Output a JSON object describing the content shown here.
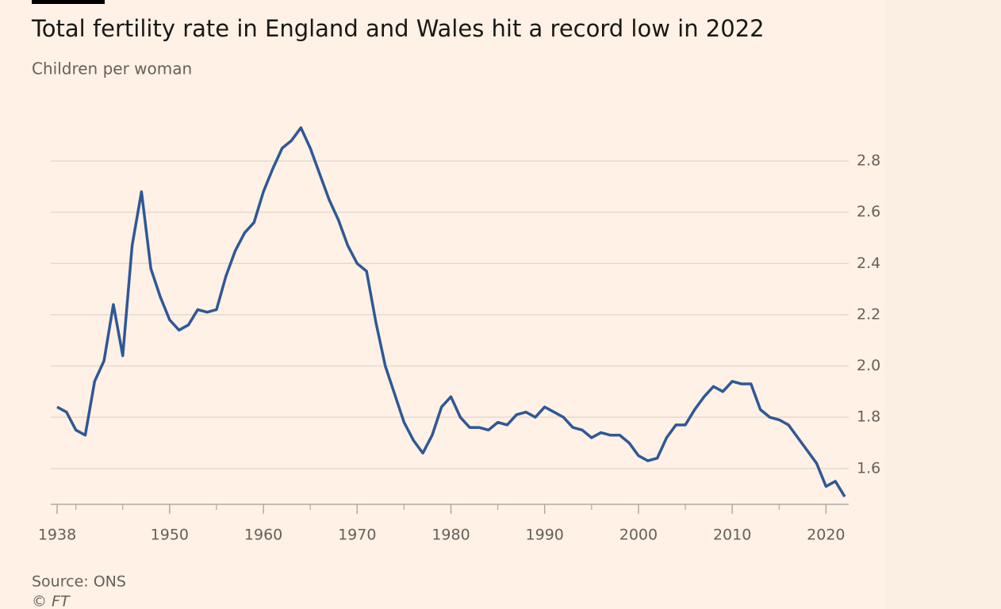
{
  "chart_data": {
    "type": "line",
    "title": "Total fertility rate in England and Wales hit a record low in 2022",
    "subtitle": "Children per woman",
    "source": "Source: ONS",
    "credit": "© FT",
    "color": "#2f5896",
    "x": [
      1938,
      1939,
      1940,
      1941,
      1942,
      1943,
      1944,
      1945,
      1946,
      1947,
      1948,
      1949,
      1950,
      1951,
      1952,
      1953,
      1954,
      1955,
      1956,
      1957,
      1958,
      1959,
      1960,
      1961,
      1962,
      1963,
      1964,
      1965,
      1966,
      1967,
      1968,
      1969,
      1970,
      1971,
      1972,
      1973,
      1974,
      1975,
      1976,
      1977,
      1978,
      1979,
      1980,
      1981,
      1982,
      1983,
      1984,
      1985,
      1986,
      1987,
      1988,
      1989,
      1990,
      1991,
      1992,
      1993,
      1994,
      1995,
      1996,
      1997,
      1998,
      1999,
      2000,
      2001,
      2002,
      2003,
      2004,
      2005,
      2006,
      2007,
      2008,
      2009,
      2010,
      2011,
      2012,
      2013,
      2014,
      2015,
      2016,
      2017,
      2018,
      2019,
      2020,
      2021,
      2022
    ],
    "values": [
      1.84,
      1.82,
      1.75,
      1.73,
      1.94,
      2.02,
      2.24,
      2.04,
      2.47,
      2.68,
      2.38,
      2.27,
      2.18,
      2.14,
      2.16,
      2.22,
      2.21,
      2.22,
      2.35,
      2.45,
      2.52,
      2.56,
      2.68,
      2.77,
      2.85,
      2.88,
      2.93,
      2.85,
      2.75,
      2.65,
      2.57,
      2.47,
      2.4,
      2.37,
      2.17,
      2.0,
      1.89,
      1.78,
      1.71,
      1.66,
      1.73,
      1.84,
      1.88,
      1.8,
      1.76,
      1.76,
      1.75,
      1.78,
      1.77,
      1.81,
      1.82,
      1.8,
      1.84,
      1.82,
      1.8,
      1.76,
      1.75,
      1.72,
      1.74,
      1.73,
      1.73,
      1.7,
      1.65,
      1.63,
      1.64,
      1.72,
      1.77,
      1.77,
      1.83,
      1.88,
      1.92,
      1.9,
      1.94,
      1.93,
      1.93,
      1.83,
      1.8,
      1.79,
      1.77,
      1.72,
      1.67,
      1.62,
      1.53,
      1.55,
      1.49
    ],
    "xlim": [
      1938,
      2022
    ],
    "xticks": [
      1938,
      1950,
      1960,
      1970,
      1980,
      1990,
      2000,
      2010,
      2020
    ],
    "xminorticks": [
      1940,
      1945,
      1955,
      1965,
      1975,
      1985,
      1995,
      2005,
      2015
    ],
    "ylim": [
      1.46,
      2.95
    ],
    "yticks": [
      1.6,
      1.8,
      {
        "value": 2,
        "label": "2.0"
      },
      2.2,
      2.4,
      2.6,
      2.8
    ],
    "grid": true
  }
}
